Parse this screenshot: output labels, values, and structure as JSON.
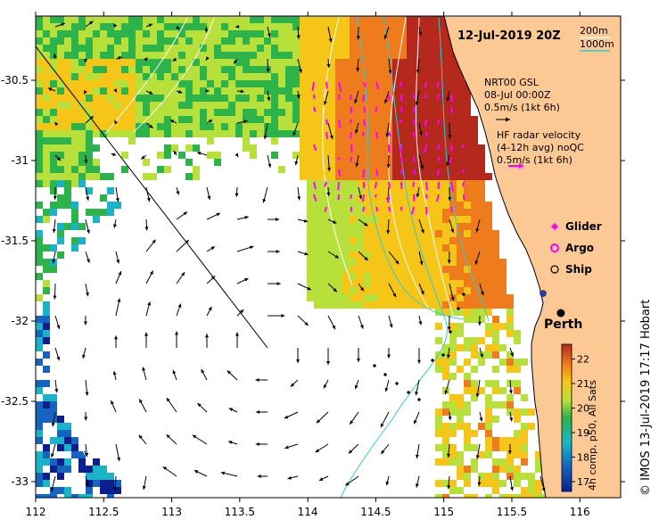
{
  "map": {
    "date_title": "12-Jul-2019 20Z",
    "x_ticks": [
      "112",
      "112.5",
      "113",
      "113.5",
      "114",
      "114.5",
      "115",
      "115.5",
      "116"
    ],
    "y_ticks": [
      "-30.5",
      "-31",
      "-31.5",
      "-32",
      "-32.5",
      "-33"
    ],
    "x_tick_values": [
      112,
      112.5,
      113,
      113.5,
      114,
      114.5,
      115,
      115.5,
      116
    ],
    "y_tick_values": [
      -30.5,
      -31,
      -31.5,
      -32,
      -32.5,
      -33
    ],
    "lon_range": [
      112,
      116.3
    ],
    "lat_range": [
      -33.1,
      -30.1
    ],
    "isobaths": {
      "label_200": "200m",
      "label_1000": "1000m",
      "color_200": "#ffffff",
      "color_1000": "#33cccc"
    },
    "model_currents": {
      "title": "NRT00 GSL",
      "date": "08-Jul 00:00Z",
      "scale": "0.5m/s (1kt 6h)"
    },
    "hf_radar": {
      "line1": "HF radar velocity",
      "line2": "(4-12h avg) noQC",
      "scale": "0.5m/s (1kt 6h)",
      "color": "#ff00ff"
    },
    "legend": {
      "glider": "Glider",
      "argo": "Argo",
      "ship": "Ship"
    },
    "city": {
      "name": "Perth",
      "lon": 115.86,
      "lat": -31.95
    },
    "land_color": "#fcc893"
  },
  "colorbar": {
    "label": "4h comp, p50, All Sats",
    "ticks": [
      "17",
      "18",
      "19",
      "20",
      "21",
      "22"
    ],
    "range": [
      16.6,
      22.6
    ]
  },
  "credit": "© IMOS 13-Jul-2019 17:17 Hobart"
}
